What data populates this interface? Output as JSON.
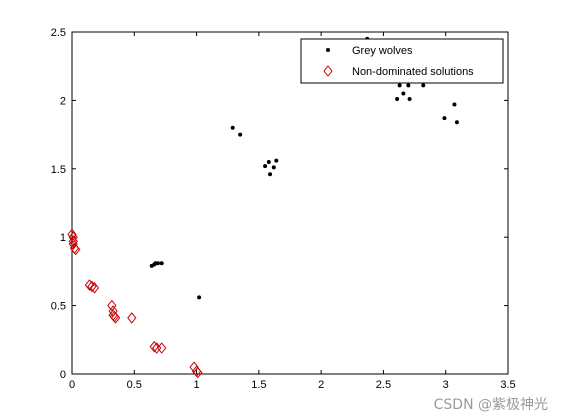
{
  "chart_data": {
    "type": "scatter",
    "title": "",
    "xlabel": "",
    "ylabel": "",
    "xlim": [
      0,
      3.5
    ],
    "ylim": [
      0,
      2.5
    ],
    "xticks": [
      0,
      0.5,
      1,
      1.5,
      2,
      2.5,
      3,
      3.5
    ],
    "yticks": [
      0,
      0.5,
      1,
      1.5,
      2,
      2.5
    ],
    "xtick_labels": [
      "0",
      "0.5",
      "1",
      "1.5",
      "2",
      "2.5",
      "3",
      "3.5"
    ],
    "ytick_labels": [
      "0",
      "0.5",
      "1",
      "1.5",
      "2",
      "2.5"
    ],
    "grid": false,
    "legend_position": "top-right",
    "series": [
      {
        "name": "Grey wolves",
        "marker": "dot",
        "color": "#000000",
        "points": [
          [
            0.64,
            0.79
          ],
          [
            0.66,
            0.8
          ],
          [
            0.67,
            0.81
          ],
          [
            0.69,
            0.81
          ],
          [
            0.72,
            0.81
          ],
          [
            1.02,
            0.56
          ],
          [
            1.29,
            1.8
          ],
          [
            1.35,
            1.75
          ],
          [
            1.55,
            1.52
          ],
          [
            1.58,
            1.55
          ],
          [
            1.59,
            1.46
          ],
          [
            1.62,
            1.51
          ],
          [
            1.64,
            1.56
          ],
          [
            2.37,
            2.45
          ],
          [
            2.58,
            2.16
          ],
          [
            2.61,
            2.01
          ],
          [
            2.63,
            2.11
          ],
          [
            2.66,
            2.05
          ],
          [
            2.7,
            2.11
          ],
          [
            2.71,
            2.01
          ],
          [
            2.73,
            2.16
          ],
          [
            2.82,
            2.11
          ],
          [
            2.99,
            1.87
          ],
          [
            3.07,
            1.97
          ],
          [
            3.09,
            1.84
          ]
        ]
      },
      {
        "name": "Non-dominated solutions",
        "marker": "diamond",
        "color": "#cc0000",
        "points": [
          [
            0.0,
            1.02
          ],
          [
            0.01,
            1.0
          ],
          [
            0.01,
            0.97
          ],
          [
            0.01,
            0.95
          ],
          [
            0.02,
            0.92
          ],
          [
            0.03,
            0.91
          ],
          [
            0.14,
            0.65
          ],
          [
            0.16,
            0.64
          ],
          [
            0.18,
            0.63
          ],
          [
            0.32,
            0.5
          ],
          [
            0.33,
            0.46
          ],
          [
            0.33,
            0.43
          ],
          [
            0.34,
            0.42
          ],
          [
            0.35,
            0.41
          ],
          [
            0.48,
            0.41
          ],
          [
            0.66,
            0.2
          ],
          [
            0.68,
            0.19
          ],
          [
            0.72,
            0.19
          ],
          [
            0.98,
            0.05
          ],
          [
            1.0,
            0.02
          ],
          [
            1.01,
            0.01
          ]
        ]
      }
    ]
  },
  "watermark": "CSDN @紫极神光"
}
